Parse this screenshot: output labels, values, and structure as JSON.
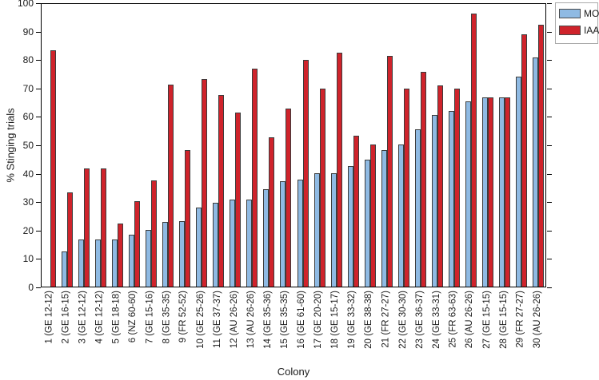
{
  "figure": {
    "background": "#ffffff"
  },
  "colors": {
    "mo_fill": "#8FBAE3",
    "iaa_fill": "#CF232B",
    "bar_edge": "#3C3C3C",
    "axis": "#000000",
    "legend_border": "#ABABAB",
    "text": "#1A1A1A"
  },
  "legend": {
    "items": [
      {
        "label": "MO",
        "swatch": "mo-swatch"
      },
      {
        "label": "IAA",
        "swatch": "iaa-swatch"
      }
    ]
  },
  "chart_data": {
    "type": "bar",
    "title": "",
    "xlabel": "Colony",
    "ylabel": "% Stinging trials",
    "ylim": [
      0,
      100
    ],
    "yticks": [
      0,
      10,
      20,
      30,
      40,
      50,
      60,
      70,
      80,
      90,
      100
    ],
    "grid": false,
    "box": true,
    "legend_position": "top-right-outside",
    "categories": [
      "1 (GE 12-12)",
      "2 (GE 16-15)",
      "3 (GE 12-12)",
      "4 (GE 12-12)",
      "5 (GE 18-18)",
      "6 (NZ 60-60)",
      "7 (GE 15-16)",
      "8 (GE 35-35)",
      "9 (FR 52-52)",
      "10 (GE 25-26)",
      "11 (GE 37-37)",
      "12 (AU 26-26)",
      "13 (AU 26-26)",
      "14 (GE 35-36)",
      "15 (GE 35-35)",
      "16 (GE 61-60)",
      "17 (GE 20-20)",
      "18 (GE 15-17)",
      "19 (GE 33-32)",
      "20 (GE 38-38)",
      "21 (FR 27-27)",
      "22 (GE 30-30)",
      "23 (GE 36-37)",
      "24 (GE 33-31)",
      "25 (FR 63-63)",
      "26 (AU 26-26)",
      "27 (GE 15-15)",
      "28 (GE 15-15)",
      "29 (FR 27-27)",
      "30 (AU 26-26)"
    ],
    "series": [
      {
        "name": "MO",
        "color": "#8FBAE3",
        "values": [
          0,
          12.5,
          16.7,
          16.7,
          16.7,
          18.3,
          20.0,
          22.9,
          23.1,
          28.0,
          29.7,
          30.8,
          30.8,
          34.3,
          37.1,
          37.7,
          40.0,
          40.0,
          42.4,
          44.7,
          48.1,
          50.0,
          55.6,
          60.6,
          61.9,
          65.4,
          66.7,
          66.7,
          74.1,
          80.8
        ]
      },
      {
        "name": "IAA",
        "color": "#CF232B",
        "values": [
          83.3,
          33.3,
          41.7,
          41.7,
          22.2,
          30.0,
          37.5,
          71.4,
          48.1,
          73.1,
          67.6,
          61.5,
          76.9,
          52.8,
          62.9,
          80.0,
          70.0,
          82.4,
          53.1,
          50.0,
          81.5,
          70.0,
          75.7,
          71.0,
          69.8,
          96.2,
          66.7,
          66.7,
          88.9,
          92.3
        ]
      }
    ]
  }
}
